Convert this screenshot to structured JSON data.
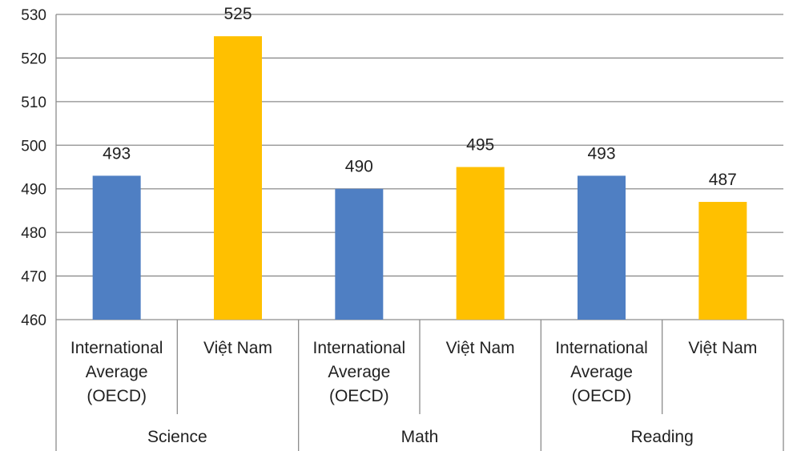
{
  "chart_data": {
    "type": "bar",
    "ylim": [
      460,
      530
    ],
    "ytick_step": 10,
    "grid": true,
    "legend": "none",
    "title": "",
    "xlabel": "",
    "ylabel": "",
    "colors": {
      "oecd": "#4f7fc3",
      "vietnam": "#ffc000",
      "grid": "#8c8c8c",
      "text": "#222222"
    },
    "groups": [
      {
        "label": "Science",
        "bars": [
          {
            "category": [
              "International",
              "Average",
              "(OECD)"
            ],
            "value": 493,
            "series": "oecd"
          },
          {
            "category": [
              "Việt Nam"
            ],
            "value": 525,
            "series": "vietnam"
          }
        ]
      },
      {
        "label": "Math",
        "bars": [
          {
            "category": [
              "International",
              "Average",
              "(OECD)"
            ],
            "value": 490,
            "series": "oecd"
          },
          {
            "category": [
              "Việt Nam"
            ],
            "value": 495,
            "series": "vietnam"
          }
        ]
      },
      {
        "label": "Reading",
        "bars": [
          {
            "category": [
              "International",
              "Average",
              "(OECD)"
            ],
            "value": 493,
            "series": "oecd"
          },
          {
            "category": [
              "Việt Nam"
            ],
            "value": 487,
            "series": "vietnam"
          }
        ]
      }
    ]
  }
}
